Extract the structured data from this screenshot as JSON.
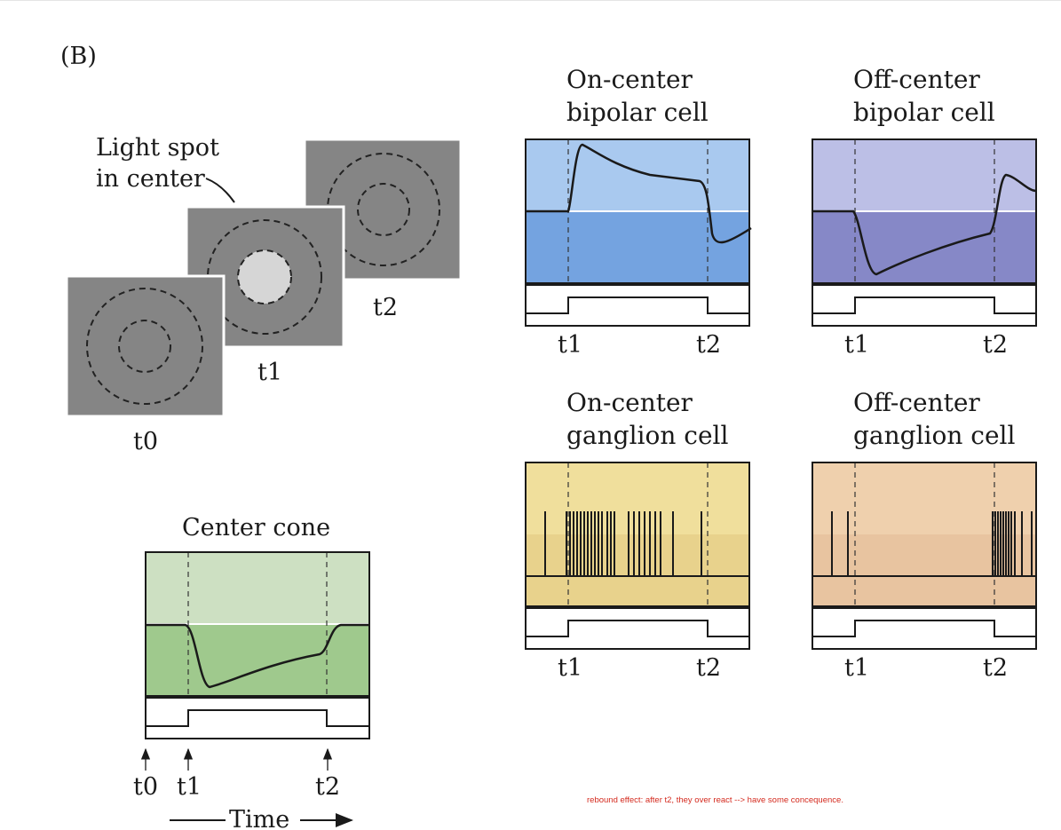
{
  "panel_label": "(B)",
  "stimulus": {
    "callout": [
      "Light spot",
      "in center"
    ],
    "frame_labels": {
      "t0": "t0",
      "t1": "t1",
      "t2": "t2"
    }
  },
  "center_cone": {
    "title": "Center cone",
    "time_labels": {
      "t0": "t0",
      "t1": "t1",
      "t2": "t2"
    },
    "time_axis_label": "Time",
    "colors": {
      "upper": "#cde0c2",
      "lower": "#9fc98d"
    }
  },
  "cells": [
    {
      "id": "on-bipolar",
      "title": [
        "On-center",
        "bipolar cell"
      ],
      "t1": "t1",
      "t2": "t2",
      "kind": "graded",
      "upper": "#a9c9ef",
      "lower": "#74a3e0"
    },
    {
      "id": "off-bipolar",
      "title": [
        "Off-center",
        "bipolar cell"
      ],
      "t1": "t1",
      "t2": "t2",
      "kind": "graded",
      "upper": "#bcbfe6",
      "lower": "#8688c7"
    },
    {
      "id": "on-ganglion",
      "title": [
        "On-center",
        "ganglion cell"
      ],
      "t1": "t1",
      "t2": "t2",
      "kind": "spikes",
      "upper": "#f0df9c",
      "lower": "#e8d28c"
    },
    {
      "id": "off-ganglion",
      "title": [
        "Off-center",
        "ganglion cell"
      ],
      "t1": "t1",
      "t2": "t2",
      "kind": "spikes",
      "upper": "#efd0ad",
      "lower": "#e8c4a0"
    }
  ],
  "annotation": "rebound effect: after t2, they over react --> have some concequence."
}
